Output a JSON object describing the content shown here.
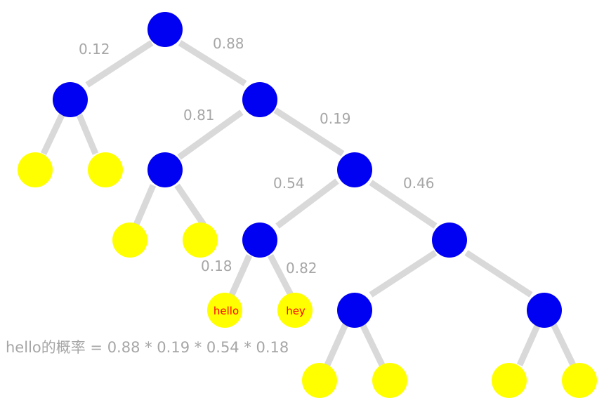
{
  "diagram": {
    "weights": {
      "root_left": "0.12",
      "root_right": "0.88",
      "r_left": "0.81",
      "r_right": "0.19",
      "rr_left": "0.54",
      "rr_right": "0.46",
      "rrl_left": "0.18",
      "rrl_right": "0.82"
    },
    "leaves": {
      "hello": "hello",
      "hey": "hey"
    },
    "caption": "hello的概率 = 0.88 * 0.19 * 0.54 * 0.18"
  },
  "colors": {
    "internal_node": "#0000f2",
    "leaf_node": "#ffff00",
    "edge": "#d9d9d9",
    "weight_text": "#a6a6a6",
    "leaf_text": "#ff0000"
  }
}
